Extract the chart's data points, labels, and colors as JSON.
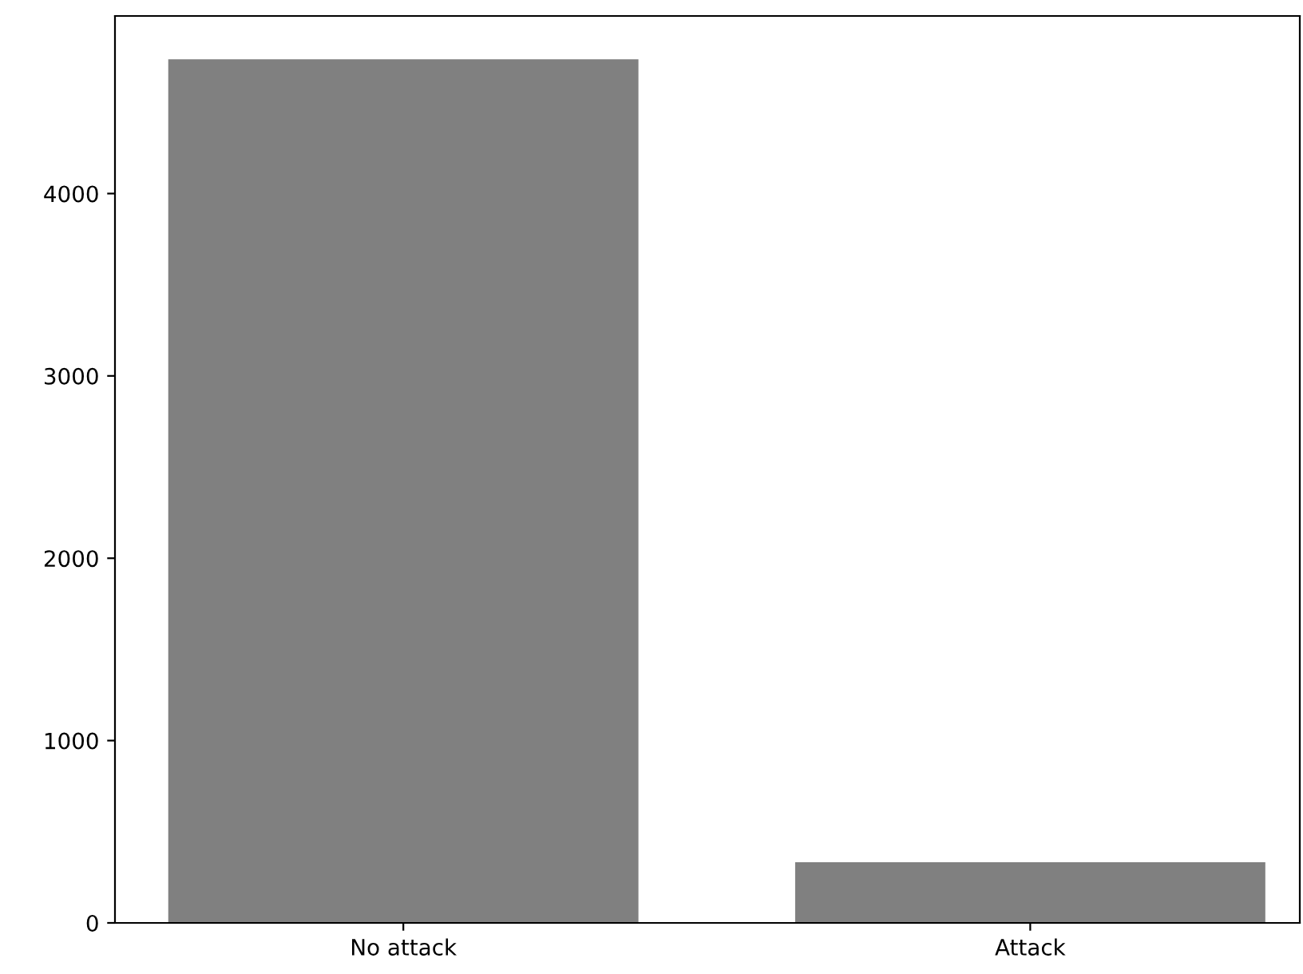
{
  "chart_data": {
    "type": "bar",
    "categories": [
      "No attack",
      "Attack"
    ],
    "values": [
      4737,
      333
    ],
    "color": "#808080",
    "ylim": [
      0,
      4974
    ],
    "yticks": [
      0,
      1000,
      2000,
      3000,
      4000
    ],
    "grid": false
  }
}
